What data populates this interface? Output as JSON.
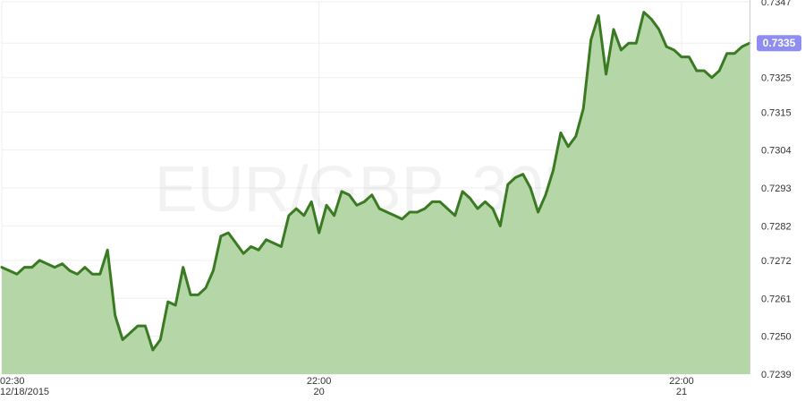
{
  "watermark": "EUR/GBP, 30M",
  "last_price_label": "0.7335",
  "colors": {
    "line": "#3a7a22",
    "fill": "#b5d6a7",
    "grid": "#efefef",
    "badge": "#8d8df2",
    "axis": "#cccccc"
  },
  "chart_data": {
    "type": "area",
    "title": "",
    "xlabel": "",
    "ylabel": "",
    "ylim": [
      0.7239,
      0.7347
    ],
    "y_ticks": [
      "0.7347",
      "0.7335",
      "0.7325",
      "0.7315",
      "0.7304",
      "0.7293",
      "0.7282",
      "0.7272",
      "0.7261",
      "0.7250",
      "0.7239"
    ],
    "x_tick_labels": [
      {
        "time": "02:30",
        "date": "12/18/2015"
      },
      {
        "time": "22:00",
        "date": "20"
      },
      {
        "time": "22:00",
        "date": "21"
      }
    ],
    "grid": true,
    "series": [
      {
        "values": [
          0.727,
          0.7269,
          0.7268,
          0.727,
          0.727,
          0.7272,
          0.7271,
          0.727,
          0.7271,
          0.7269,
          0.7268,
          0.727,
          0.7268,
          0.7268,
          0.7275,
          0.7256,
          0.7249,
          0.7251,
          0.7253,
          0.7253,
          0.7246,
          0.7249,
          0.726,
          0.7259,
          0.727,
          0.7262,
          0.7262,
          0.7264,
          0.7269,
          0.7279,
          0.728,
          0.7277,
          0.7274,
          0.7276,
          0.7275,
          0.7278,
          0.7277,
          0.7276,
          0.7285,
          0.7287,
          0.7285,
          0.7289,
          0.728,
          0.7288,
          0.7285,
          0.7292,
          0.7291,
          0.7288,
          0.7289,
          0.7291,
          0.7287,
          0.7286,
          0.7285,
          0.7284,
          0.7286,
          0.7286,
          0.7287,
          0.7289,
          0.7289,
          0.7287,
          0.7285,
          0.7292,
          0.729,
          0.7287,
          0.7289,
          0.7287,
          0.7282,
          0.7294,
          0.7296,
          0.7297,
          0.7293,
          0.7286,
          0.7291,
          0.7298,
          0.7309,
          0.7305,
          0.7308,
          0.7316,
          0.7336,
          0.7343,
          0.7326,
          0.7339,
          0.7333,
          0.7335,
          0.7335,
          0.7344,
          0.7342,
          0.7339,
          0.7334,
          0.7333,
          0.7331,
          0.7331,
          0.7327,
          0.7327,
          0.7325,
          0.7327,
          0.7332,
          0.7332,
          0.7334,
          0.7335
        ]
      }
    ]
  }
}
